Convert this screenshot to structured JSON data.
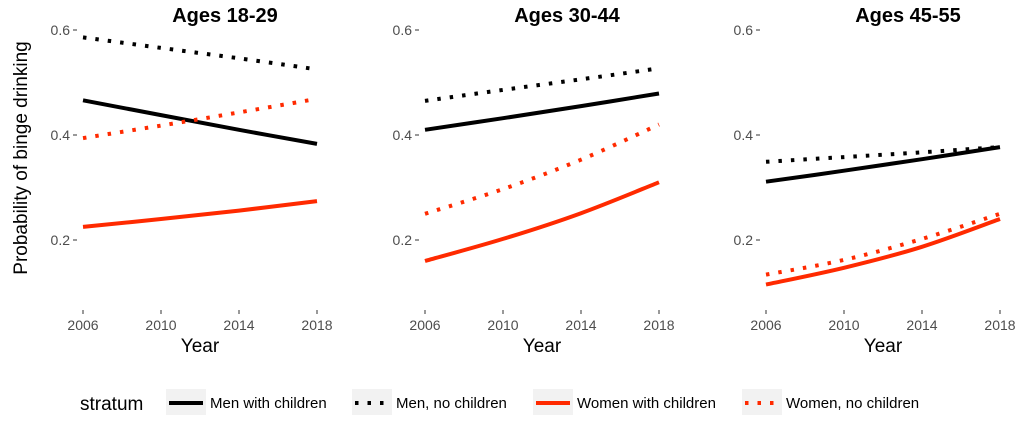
{
  "chart_data": {
    "type": "line",
    "ylabel": "Probability of binge drinking",
    "xlabel": "Year",
    "x_ticks": [
      2006,
      2010,
      2014,
      2018
    ],
    "y_ticks": [
      0.2,
      0.4,
      0.6
    ],
    "y_tick_labels": [
      "0.2",
      "0.4",
      "0.6"
    ],
    "x_tick_labels": [
      "2006",
      "2010",
      "2014",
      "2018"
    ],
    "xlim": [
      2006,
      2018
    ],
    "ylim": [
      0.1,
      0.62
    ],
    "grid": false,
    "legend": {
      "title": "stratum",
      "position": "bottom",
      "entries": [
        {
          "name": "Men with children",
          "color": "#000000",
          "dash": "solid"
        },
        {
          "name": "Men, no children",
          "color": "#000000",
          "dash": "dotted"
        },
        {
          "name": "Women with children",
          "color": "#ff2a00",
          "dash": "solid"
        },
        {
          "name": "Women, no children",
          "color": "#ff2a00",
          "dash": "dotted"
        }
      ]
    },
    "panels": [
      {
        "title": "Ages 18-29",
        "x": [
          2006,
          2010,
          2014,
          2018
        ],
        "series": [
          {
            "name": "Men with children",
            "values": [
              0.466,
              0.438,
              0.41,
              0.383
            ]
          },
          {
            "name": "Men, no children",
            "values": [
              0.586,
              0.566,
              0.546,
              0.525
            ]
          },
          {
            "name": "Women with children",
            "values": [
              0.225,
              0.24,
              0.256,
              0.274
            ]
          },
          {
            "name": "Women, no children",
            "values": [
              0.394,
              0.418,
              0.443,
              0.469
            ]
          }
        ]
      },
      {
        "title": "Ages 30-44",
        "x": [
          2006,
          2010,
          2014,
          2018
        ],
        "series": [
          {
            "name": "Men with children",
            "values": [
              0.41,
              0.432,
              0.455,
              0.479
            ]
          },
          {
            "name": "Men, no children",
            "values": [
              0.465,
              0.486,
              0.506,
              0.527
            ]
          },
          {
            "name": "Women with children",
            "values": [
              0.16,
              0.202,
              0.251,
              0.31
            ]
          },
          {
            "name": "Women, no children",
            "values": [
              0.25,
              0.297,
              0.353,
              0.42
            ]
          }
        ]
      },
      {
        "title": "Ages 45-55",
        "x": [
          2006,
          2010,
          2014,
          2018
        ],
        "series": [
          {
            "name": "Men with children",
            "values": [
              0.311,
              0.332,
              0.354,
              0.377
            ]
          },
          {
            "name": "Men, no children",
            "values": [
              0.349,
              0.358,
              0.367,
              0.377
            ]
          },
          {
            "name": "Women with children",
            "values": [
              0.115,
              0.147,
              0.187,
              0.24
            ]
          },
          {
            "name": "Women, no children",
            "values": [
              0.134,
              0.162,
              0.202,
              0.25
            ]
          }
        ]
      }
    ]
  }
}
